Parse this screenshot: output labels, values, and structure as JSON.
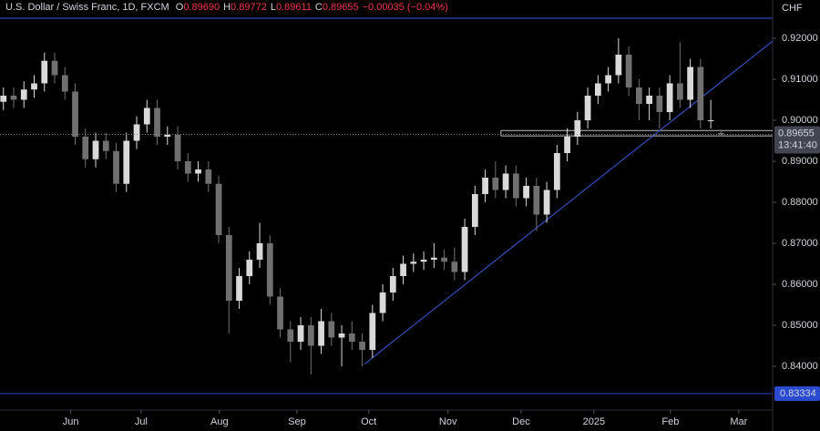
{
  "chart_data": {
    "type": "candlestick",
    "title": "U.S. Dollar / Swiss Franc, 1D, FXCM",
    "header": [
      {
        "key": "O",
        "text": "0.89690"
      },
      {
        "key": "H",
        "text": "0.89772"
      },
      {
        "key": "L",
        "text": "0.89611"
      },
      {
        "key": "C",
        "text": "0.89655"
      },
      {
        "key": "",
        "text": "−0.00035 (−0.04%)"
      }
    ],
    "currency": "CHF",
    "x": [
      1,
      4,
      7,
      10,
      13,
      16,
      19,
      22,
      25,
      28,
      31,
      34,
      37,
      40,
      43,
      46,
      49,
      52,
      55,
      58,
      61,
      64,
      67,
      70,
      73,
      76,
      79,
      82,
      85,
      88,
      91,
      94,
      97,
      100,
      103,
      106,
      109,
      112,
      115,
      118,
      121,
      124,
      127,
      130,
      133,
      136,
      139,
      142,
      145,
      148,
      151,
      154,
      157,
      160,
      163,
      166,
      169,
      172,
      175,
      178,
      181,
      184,
      187,
      190,
      193,
      196,
      199,
      202,
      205,
      208,
      211
    ],
    "open": [
      0.9045,
      0.906,
      0.905,
      0.9075,
      0.909,
      0.9145,
      0.911,
      0.907,
      0.896,
      0.8905,
      0.895,
      0.8925,
      0.8845,
      0.895,
      0.899,
      0.903,
      0.896,
      0.8965,
      0.89,
      0.887,
      0.888,
      0.8845,
      0.872,
      0.856,
      0.862,
      0.866,
      0.87,
      0.857,
      0.849,
      0.846,
      0.85,
      0.845,
      0.851,
      0.847,
      0.848,
      0.846,
      0.844,
      0.853,
      0.858,
      0.862,
      0.865,
      0.8655,
      0.866,
      0.8665,
      0.8655,
      0.863,
      0.874,
      0.882,
      0.886,
      0.883,
      0.887,
      0.881,
      0.884,
      0.877,
      0.883,
      0.892,
      0.896,
      0.9,
      0.906,
      0.909,
      0.911,
      0.916,
      0.908,
      0.904,
      0.906,
      0.902,
      0.909,
      0.905,
      0.913,
      0.9,
      0.8969
    ],
    "high": [
      0.908,
      0.908,
      0.9095,
      0.911,
      0.9165,
      0.9165,
      0.913,
      0.909,
      0.898,
      0.897,
      0.897,
      0.8945,
      0.897,
      0.901,
      0.905,
      0.905,
      0.8985,
      0.8985,
      0.892,
      0.89,
      0.89,
      0.8865,
      0.874,
      0.864,
      0.868,
      0.875,
      0.872,
      0.859,
      0.851,
      0.852,
      0.852,
      0.854,
      0.853,
      0.85,
      0.851,
      0.848,
      0.855,
      0.86,
      0.864,
      0.867,
      0.8675,
      0.868,
      0.87,
      0.8685,
      0.869,
      0.876,
      0.884,
      0.888,
      0.89,
      0.889,
      0.889,
      0.886,
      0.886,
      0.885,
      0.894,
      0.898,
      0.902,
      0.908,
      0.911,
      0.913,
      0.92,
      0.918,
      0.91,
      0.908,
      0.908,
      0.911,
      0.919,
      0.915,
      0.915,
      0.905,
      0.89772
    ],
    "low": [
      0.9025,
      0.903,
      0.903,
      0.9055,
      0.907,
      0.909,
      0.905,
      0.894,
      0.8885,
      0.8885,
      0.8905,
      0.8825,
      0.8825,
      0.893,
      0.897,
      0.894,
      0.894,
      0.888,
      0.885,
      0.885,
      0.8825,
      0.87,
      0.848,
      0.854,
      0.86,
      0.864,
      0.855,
      0.847,
      0.841,
      0.844,
      0.838,
      0.843,
      0.845,
      0.84,
      0.844,
      0.84,
      0.842,
      0.851,
      0.856,
      0.86,
      0.863,
      0.8635,
      0.864,
      0.8635,
      0.861,
      0.861,
      0.872,
      0.88,
      0.881,
      0.881,
      0.879,
      0.879,
      0.873,
      0.875,
      0.881,
      0.89,
      0.894,
      0.898,
      0.904,
      0.907,
      0.909,
      0.906,
      0.9,
      0.9,
      0.898,
      0.9,
      0.903,
      0.903,
      0.898,
      0.898,
      0.89611
    ],
    "close": [
      0.906,
      0.905,
      0.9075,
      0.909,
      0.9145,
      0.911,
      0.907,
      0.896,
      0.8905,
      0.895,
      0.8925,
      0.8845,
      0.895,
      0.899,
      0.903,
      0.896,
      0.8965,
      0.89,
      0.887,
      0.888,
      0.8845,
      0.872,
      0.856,
      0.862,
      0.866,
      0.87,
      0.857,
      0.849,
      0.846,
      0.85,
      0.845,
      0.851,
      0.847,
      0.848,
      0.846,
      0.844,
      0.853,
      0.858,
      0.862,
      0.865,
      0.8655,
      0.866,
      0.8665,
      0.8655,
      0.863,
      0.874,
      0.882,
      0.886,
      0.883,
      0.887,
      0.881,
      0.884,
      0.877,
      0.883,
      0.892,
      0.896,
      0.9,
      0.906,
      0.909,
      0.911,
      0.916,
      0.908,
      0.904,
      0.906,
      0.902,
      0.909,
      0.905,
      0.913,
      0.9,
      0.9,
      0.89655
    ],
    "up_color": "#d9d9d9",
    "down_color": "#707070",
    "xlim": [
      0,
      226.1
    ],
    "xticks": [
      {
        "value": 20.7,
        "label": "Jun"
      },
      {
        "value": 41.3,
        "label": "Jul"
      },
      {
        "value": 64.2,
        "label": "Aug"
      },
      {
        "value": 86.9,
        "label": "Sep"
      },
      {
        "value": 107.9,
        "label": "Oct"
      },
      {
        "value": 131.1,
        "label": "Nov"
      },
      {
        "value": 152.5,
        "label": "Dec"
      },
      {
        "value": 173.8,
        "label": "2025"
      },
      {
        "value": 196.2,
        "label": "Feb"
      },
      {
        "value": 216.2,
        "label": "Mar"
      }
    ],
    "ylim": [
      0.82933,
      0.92933
    ],
    "yticks": [
      {
        "value": 0.84,
        "label": "0.84000"
      },
      {
        "value": 0.85,
        "label": "0.85000"
      },
      {
        "value": 0.86,
        "label": "0.86000"
      },
      {
        "value": 0.87,
        "label": "0.87000"
      },
      {
        "value": 0.88,
        "label": "0.88000"
      },
      {
        "value": 0.89,
        "label": "0.89000"
      },
      {
        "value": 0.9,
        "label": "0.90000"
      },
      {
        "value": 0.91,
        "label": "0.91000"
      },
      {
        "value": 0.92,
        "label": "0.92000"
      }
    ],
    "trendline": {
      "x": [
        106.6,
        226.1
      ],
      "y": [
        0.8405,
        0.9193
      ],
      "color": "#3a5bd9"
    },
    "support": {
      "x": [
        146.6,
        226.1
      ],
      "y": [
        0.8975,
        0.8962
      ],
      "color": "#bfbfbf"
    },
    "hlines": [
      {
        "value": 0.92489,
        "color": "#3a5bd9"
      },
      {
        "value": 0.83334,
        "label": "0.83334",
        "color": "#2a4bd0"
      }
    ],
    "last_price": {
      "value": 0.89655,
      "label": "0.89655"
    },
    "countdown": "13:41:40"
  }
}
